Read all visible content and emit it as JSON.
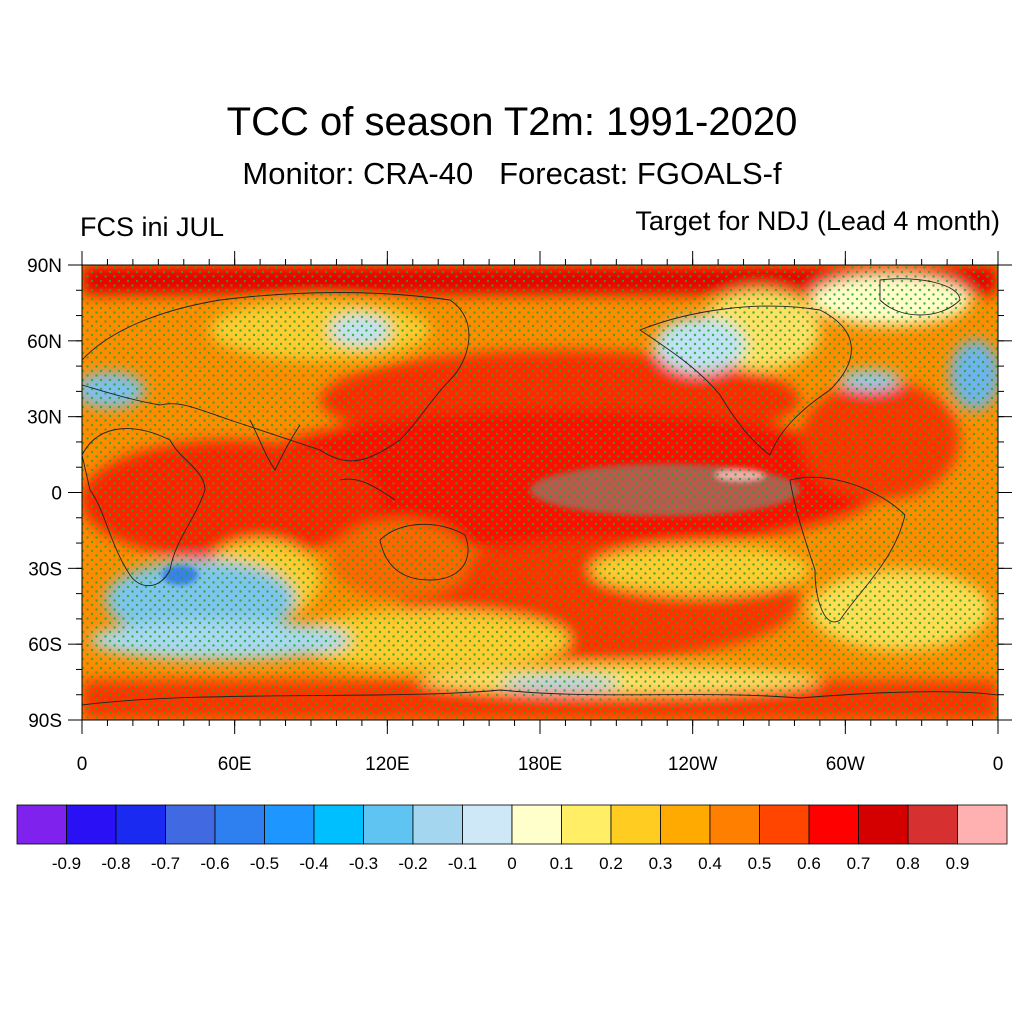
{
  "title": "TCC of season T2m: 1991-2020",
  "subtitle": "Monitor: CRA-40   Forecast: FGOALS-f",
  "left_string": "FCS ini JUL",
  "right_string": "Target for NDJ (Lead 4 month)",
  "map": {
    "lat_labels": [
      "90N",
      "60N",
      "30N",
      "0",
      "30S",
      "60S",
      "90S"
    ],
    "lon_labels": [
      "0",
      "60E",
      "120E",
      "180E",
      "120W",
      "60W",
      "0"
    ],
    "projection": "cylindrical equidistant",
    "stippling": "green dots over significant regions"
  },
  "colorbar": {
    "labels": [
      "-0.9",
      "-0.8",
      "-0.7",
      "-0.6",
      "-0.5",
      "-0.4",
      "-0.3",
      "-0.2",
      "-0.1",
      "0",
      "0.1",
      "0.2",
      "0.3",
      "0.4",
      "0.5",
      "0.6",
      "0.7",
      "0.8",
      "0.9"
    ],
    "colors": [
      "#7f22ee",
      "#2a10f5",
      "#1a2af0",
      "#4169e1",
      "#2e7ff0",
      "#1e96ff",
      "#00bfff",
      "#5fc4f2",
      "#a4d6f0",
      "#cfe8f7",
      "#ffffcc",
      "#ffee66",
      "#ffcc22",
      "#ffaa00",
      "#ff7f00",
      "#ff4500",
      "#ff0000",
      "#d40000",
      "#d63030",
      "#ffb0b0"
    ]
  }
}
